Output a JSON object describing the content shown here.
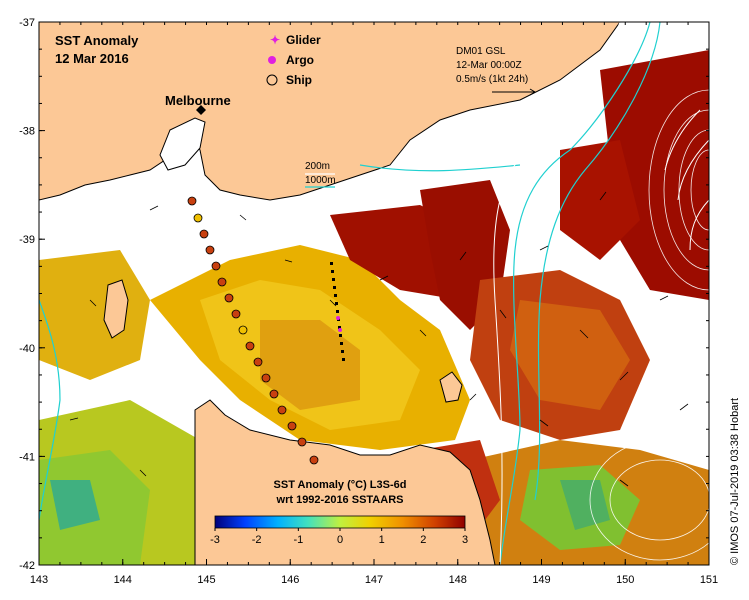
{
  "map": {
    "title_line1": "SST Anomaly",
    "title_line2": "12 Mar 2016",
    "place_label": "Melbourne",
    "legend": {
      "glider": "Glider",
      "argo": "Argo",
      "ship": "Ship",
      "glider_color": "#e020e0",
      "argo_color": "#e020e0",
      "ship_color": "#000000"
    },
    "isobaths": {
      "label_200": "200m",
      "label_1000": "1000m",
      "color_200": "#ffffff",
      "color_1000": "#20d0d0"
    },
    "currents": {
      "line1": "DM01 GSL",
      "line2": "12-Mar 00:00Z",
      "line3": "0.5m/s (1kt 24h)"
    },
    "colorbar": {
      "title_line1": "SST Anomaly (°C) L3S-6d",
      "title_line2": "wrt 1992-2016 SSTAARS",
      "ticks": [
        "-3",
        "-2",
        "-1",
        "0",
        "1",
        "2",
        "3"
      ],
      "range": [
        -3,
        3
      ]
    },
    "credit": "© IMOS 07-Jul-2019 03:38 Hobart",
    "lon_labels": [
      "143",
      "144",
      "145",
      "146",
      "147",
      "148",
      "149",
      "150",
      "151"
    ],
    "lat_labels": [
      "-37",
      "-38",
      "-39",
      "-40",
      "-41",
      "-42"
    ],
    "lon_range": [
      143,
      151
    ],
    "lat_range": [
      -42,
      -37
    ],
    "colors": {
      "land": "#fcc896",
      "no_data": "#ffffff",
      "warm_hot": "#a01000",
      "warm_orange": "#e87a10",
      "warm_yellow": "#f0c000",
      "neutral_green": "#80d040",
      "cool_cyan": "#30c0e0"
    }
  }
}
